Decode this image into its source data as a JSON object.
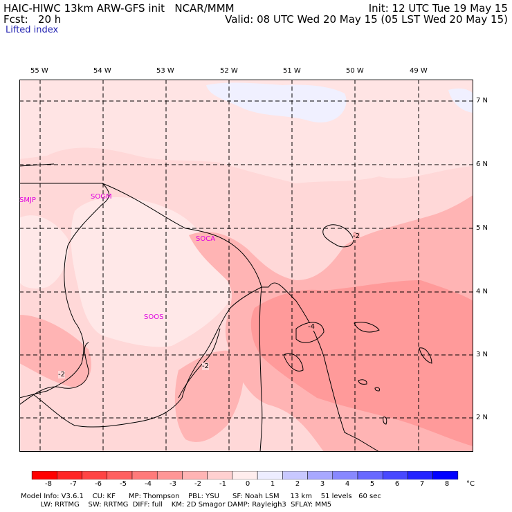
{
  "header": {
    "model": "HAIC-HIWC 13km ARW-GFS init   NCAR/MMM",
    "fcst": "Fcst:   20 h",
    "init": "Init: 12 UTC Tue 19 May 15",
    "valid": "Valid: 08 UTC Wed 20 May 15 (05 LST Wed 20 May 15)",
    "field": "Lifted index"
  },
  "map": {
    "lon_labels": [
      "55 W",
      "54 W",
      "53 W",
      "52 W",
      "51 W",
      "50 W",
      "49 W"
    ],
    "lat_labels": [
      "7 N",
      "6 N",
      "5 N",
      "4 N",
      "3 N",
      "2 N"
    ],
    "stations": [
      "SMJP",
      "SOGM",
      "SOCA",
      "SOOS"
    ],
    "contour_labels": [
      "-2",
      "-4",
      "-2",
      "-2"
    ]
  },
  "colorbar": {
    "labels": [
      "-8",
      "-7",
      "-6",
      "-5",
      "-4",
      "-3",
      "-2",
      "-1",
      "0",
      "1",
      "2",
      "3",
      "4",
      "5",
      "6",
      "7",
      "8"
    ],
    "unit": "°C",
    "colors": [
      "#ff0000",
      "#ff2525",
      "#ff4444",
      "#ff6060",
      "#ff7a7a",
      "#ff9696",
      "#ffb4b4",
      "#ffd0d0",
      "#ffeded",
      "#ededff",
      "#c8c8ff",
      "#a8a8ff",
      "#8888ff",
      "#6868ff",
      "#4848ff",
      "#2424ff",
      "#0000ff"
    ]
  },
  "footer": {
    "line1": "Model Info: V3.6.1    CU: KF      MP: Thompson    PBL: YSU      SF: Noah LSM     13 km    51 levels   60 sec",
    "line2": "         LW: RRTMG    SW: RRTMG  DIFF: full    KM: 2D Smagor DAMP: Rayleigh3  SFLAY: MM5"
  }
}
